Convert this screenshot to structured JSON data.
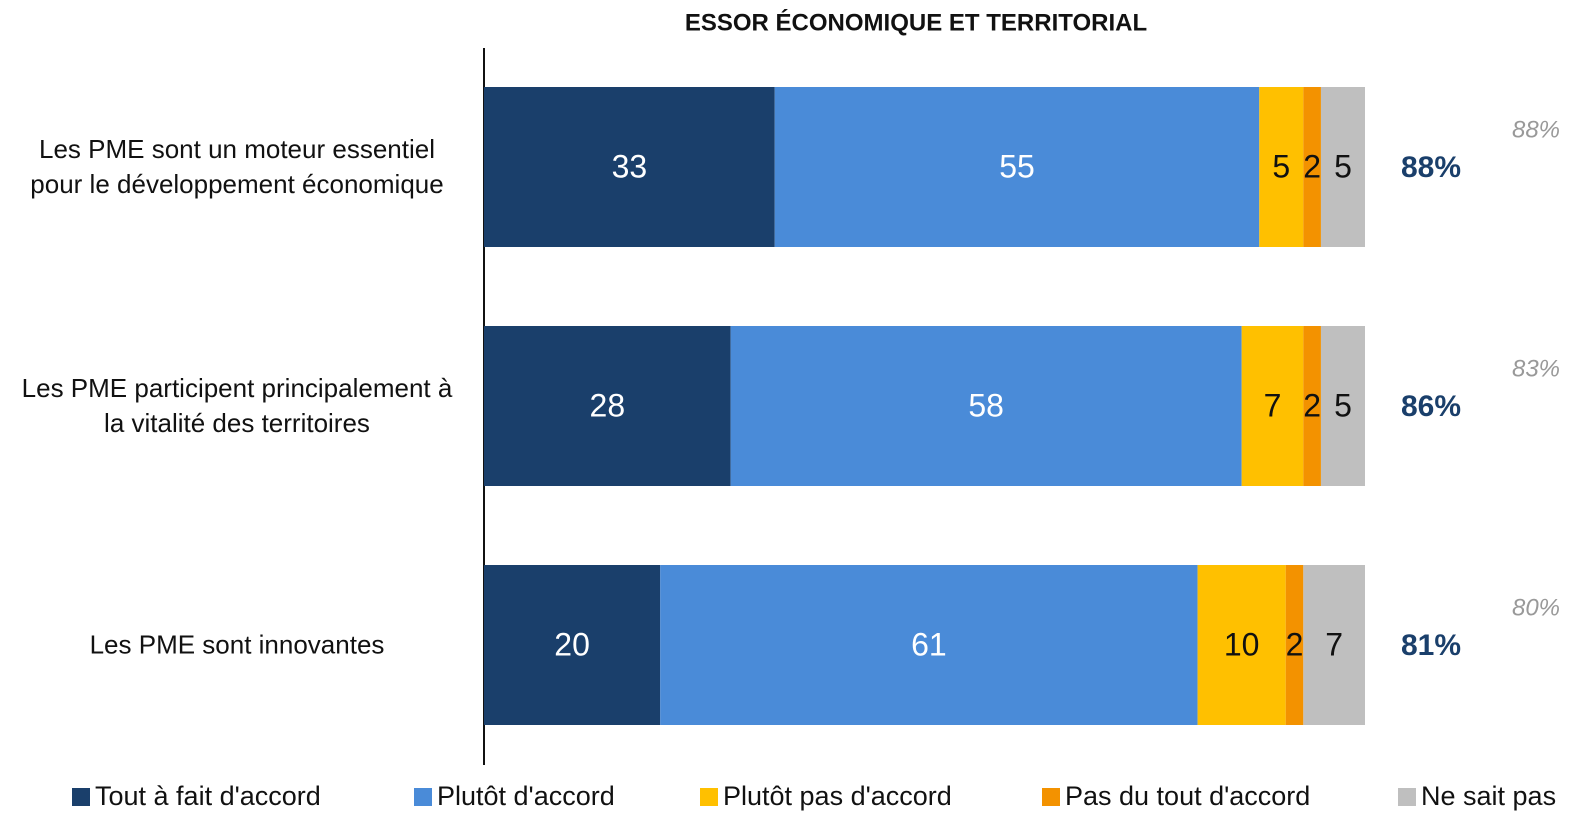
{
  "chart_data": {
    "type": "stacked-bar-horizontal",
    "title": "ESSOR ÉCONOMIQUE ET TERRITORIAL",
    "categories": [
      "Les PME sont un moteur essentiel pour le développement économique",
      "Les PME participent principalement à la vitalité des territoires",
      "Les PME sont innovantes"
    ],
    "series": [
      {
        "name": "Tout à fait d'accord",
        "color": "#1a3f6b",
        "values": [
          33,
          28,
          20
        ]
      },
      {
        "name": "Plutôt d'accord",
        "color": "#4a8bd8",
        "values": [
          55,
          58,
          61
        ]
      },
      {
        "name": "Plutôt pas d'accord",
        "color": "#ffc000",
        "values": [
          5,
          7,
          10
        ]
      },
      {
        "name": "Pas du tout d'accord",
        "color": "#f39200",
        "values": [
          2,
          2,
          2
        ]
      },
      {
        "name": "Ne sait pas",
        "color": "#bfbfbf",
        "values": [
          5,
          5,
          7
        ]
      }
    ],
    "totals": {
      "color": "#1a3f6b",
      "values": [
        88,
        86,
        81
      ],
      "value_labels": [
        "88%",
        "86%",
        "81%"
      ]
    },
    "previous": {
      "color": "#999999",
      "values": [
        88,
        83,
        80
      ],
      "value_labels": [
        "88%",
        "83%",
        "80%"
      ]
    },
    "xlim": [
      0,
      100
    ]
  }
}
